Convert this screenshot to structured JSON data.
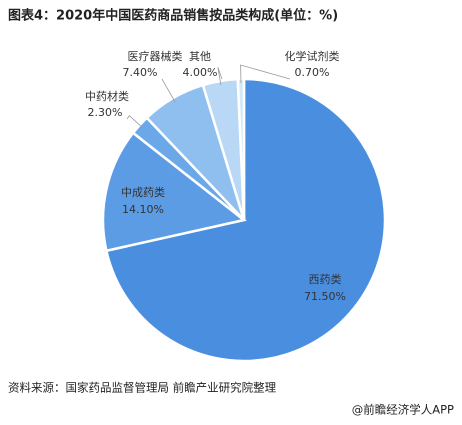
{
  "chart_data": {
    "type": "pie",
    "title": "图表4：2020年中国医药商品销售按品类构成(单位：%)",
    "categories": [
      "西药类",
      "中成药类",
      "中药材类",
      "医疗器械类",
      "其他",
      "化学试剂类"
    ],
    "values": [
      71.5,
      14.1,
      2.3,
      7.4,
      4.0,
      0.7
    ],
    "value_labels": [
      "71.50%",
      "14.10%",
      "2.30%",
      "7.40%",
      "4.00%",
      "0.70%"
    ],
    "colors": [
      "#4a8ee0",
      "#5c9ce4",
      "#6aa8e8",
      "#8fbfee",
      "#b9d8f5",
      "#d6e8f8"
    ],
    "source": "资料来源：国家药品监督管理局 前瞻产业研究院整理",
    "credit": "@前瞻经济学人APP"
  }
}
